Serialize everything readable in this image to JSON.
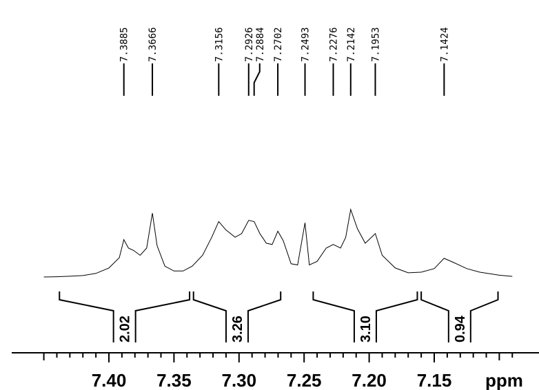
{
  "chart_data": {
    "type": "line",
    "title": "",
    "xlabel": "ppm",
    "x_axis": {
      "range": [
        7.45,
        7.09
      ],
      "reversed": true,
      "major_ticks": [
        7.4,
        7.35,
        7.3,
        7.25,
        7.2,
        7.15
      ],
      "major_tick_labels": [
        "7.40",
        "7.35",
        "7.30",
        "7.25",
        "7.20",
        "7.15"
      ],
      "minor_step": 0.01
    },
    "peak_labels": [
      "7.3885",
      "7.3666",
      "7.3156",
      "7.2926",
      "7.2884",
      "7.2702",
      "7.2493",
      "7.2276",
      "7.2142",
      "7.1953",
      "7.1424"
    ],
    "peaks": [
      7.3885,
      7.3666,
      7.3156,
      7.2926,
      7.2884,
      7.2702,
      7.2493,
      7.2276,
      7.2142,
      7.1953,
      7.1424
    ],
    "integrals": [
      {
        "from": 7.438,
        "to": 7.338,
        "value": "2.02"
      },
      {
        "from": 7.335,
        "to": 7.268,
        "value": "3.26"
      },
      {
        "from": 7.243,
        "to": 7.163,
        "value": "3.10"
      },
      {
        "from": 7.16,
        "to": 7.101,
        "value": "0.94"
      }
    ],
    "spectrum": {
      "baseline": 0.0,
      "ylim": [
        0.0,
        1.0
      ],
      "points": [
        [
          7.45,
          0.0
        ],
        [
          7.44,
          0.002
        ],
        [
          7.43,
          0.006
        ],
        [
          7.42,
          0.012
        ],
        [
          7.41,
          0.03
        ],
        [
          7.4,
          0.075
        ],
        [
          7.392,
          0.16
        ],
        [
          7.3885,
          0.31
        ],
        [
          7.385,
          0.24
        ],
        [
          7.381,
          0.22
        ],
        [
          7.376,
          0.18
        ],
        [
          7.371,
          0.24
        ],
        [
          7.3666,
          0.53
        ],
        [
          7.363,
          0.26
        ],
        [
          7.357,
          0.09
        ],
        [
          7.35,
          0.05
        ],
        [
          7.343,
          0.05
        ],
        [
          7.336,
          0.09
        ],
        [
          7.328,
          0.18
        ],
        [
          7.321,
          0.33
        ],
        [
          7.3156,
          0.46
        ],
        [
          7.31,
          0.39
        ],
        [
          7.303,
          0.33
        ],
        [
          7.298,
          0.36
        ],
        [
          7.2926,
          0.47
        ],
        [
          7.2884,
          0.46
        ],
        [
          7.284,
          0.36
        ],
        [
          7.279,
          0.28
        ],
        [
          7.2745,
          0.27
        ],
        [
          7.2702,
          0.38
        ],
        [
          7.266,
          0.3
        ],
        [
          7.26,
          0.11
        ],
        [
          7.255,
          0.1
        ],
        [
          7.2493,
          0.45
        ],
        [
          7.246,
          0.1
        ],
        [
          7.24,
          0.13
        ],
        [
          7.233,
          0.24
        ],
        [
          7.2276,
          0.27
        ],
        [
          7.222,
          0.24
        ],
        [
          7.218,
          0.33
        ],
        [
          7.2142,
          0.56
        ],
        [
          7.209,
          0.4
        ],
        [
          7.203,
          0.28
        ],
        [
          7.1953,
          0.36
        ],
        [
          7.19,
          0.18
        ],
        [
          7.18,
          0.075
        ],
        [
          7.17,
          0.035
        ],
        [
          7.16,
          0.04
        ],
        [
          7.15,
          0.07
        ],
        [
          7.1424,
          0.155
        ],
        [
          7.135,
          0.12
        ],
        [
          7.125,
          0.07
        ],
        [
          7.115,
          0.04
        ],
        [
          7.1,
          0.015
        ],
        [
          7.09,
          0.005
        ]
      ]
    }
  }
}
